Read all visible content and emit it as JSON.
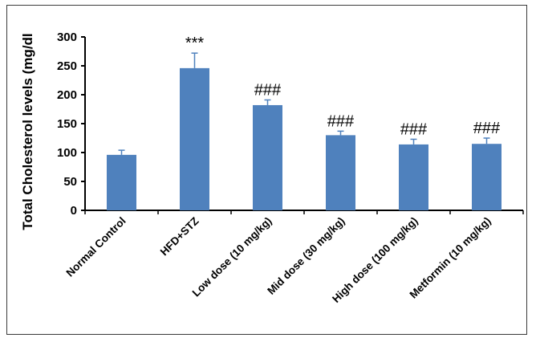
{
  "chart_data": {
    "type": "bar",
    "title": "",
    "xlabel": "",
    "ylabel": "Total Cholesterol  levels (mg/dl",
    "ylim": [
      0,
      300
    ],
    "yticks": [
      0,
      50,
      100,
      150,
      200,
      250,
      300
    ],
    "grid": false,
    "bar_color": "#4f81bd",
    "categories": [
      "Normal Control",
      "HFD+STZ",
      "Low dose (10 mg/kg)",
      "Mid dose (30 mg/kg)",
      "High dose (100 mg/kg)",
      "Metformin (10 mg/kg)"
    ],
    "values": [
      96,
      246,
      182,
      130,
      114,
      115
    ],
    "errors": [
      8,
      26,
      9,
      7,
      9,
      10
    ],
    "annotations": [
      "",
      "***",
      "###",
      "###",
      "###",
      "###"
    ]
  }
}
